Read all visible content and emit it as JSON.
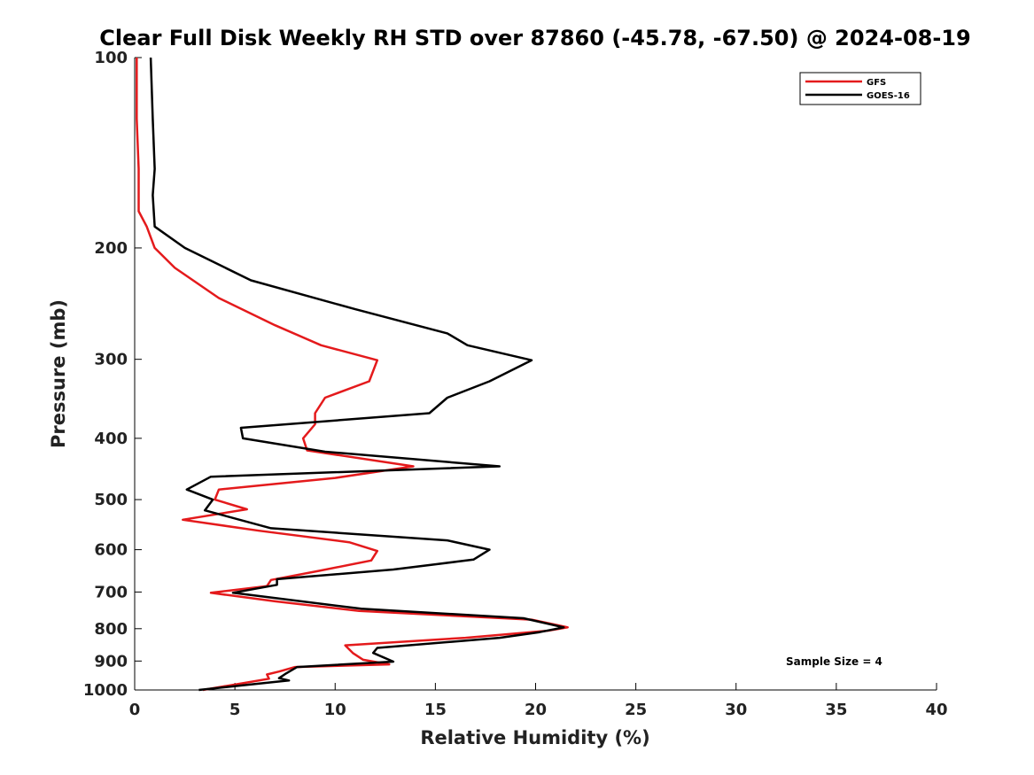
{
  "chart_data": {
    "type": "line",
    "title": "Clear Full Disk Weekly RH STD over 87860 (-45.78, -67.50) @ 2024-08-19",
    "xlabel": "Relative Humidity (%)",
    "ylabel": "Pressure (mb)",
    "xlim": [
      0,
      40
    ],
    "ylim": [
      100,
      1000
    ],
    "y_scale": "log",
    "y_reversed": true,
    "grid": false,
    "legend_position": "top-right",
    "x_ticks": [
      0,
      5,
      10,
      15,
      20,
      25,
      30,
      35,
      40
    ],
    "x_tick_labels": [
      "0",
      "5",
      "10",
      "15",
      "20",
      "25",
      "30",
      "35",
      "40"
    ],
    "y_ticks": [
      100,
      200,
      300,
      400,
      500,
      600,
      700,
      800,
      900,
      1000
    ],
    "y_tick_labels": [
      "100",
      "200",
      "300",
      "400",
      "500",
      "600",
      "700",
      "800",
      "900",
      "1000"
    ],
    "annotation": "Sample Size = 4",
    "series": [
      {
        "name": "GFS",
        "color": "#e41a1c",
        "points": [
          [
            0.1,
            100
          ],
          [
            0.1,
            125
          ],
          [
            0.2,
            150
          ],
          [
            0.2,
            175
          ],
          [
            0.6,
            185
          ],
          [
            1.0,
            200
          ],
          [
            2.0,
            215
          ],
          [
            4.2,
            240
          ],
          [
            7.0,
            265
          ],
          [
            9.3,
            285
          ],
          [
            12.1,
            301
          ],
          [
            11.7,
            325
          ],
          [
            9.5,
            345
          ],
          [
            9.0,
            365
          ],
          [
            9.0,
            380
          ],
          [
            8.4,
            400
          ],
          [
            8.6,
            418
          ],
          [
            13.9,
            443
          ],
          [
            10.0,
            462
          ],
          [
            4.2,
            482
          ],
          [
            4.0,
            500
          ],
          [
            5.6,
            518
          ],
          [
            2.4,
            538
          ],
          [
            6.2,
            560
          ],
          [
            10.7,
            584
          ],
          [
            12.1,
            603
          ],
          [
            11.8,
            624
          ],
          [
            9.2,
            648
          ],
          [
            6.8,
            670
          ],
          [
            6.6,
            685
          ],
          [
            3.8,
            702
          ],
          [
            7.0,
            724
          ],
          [
            11.2,
            750
          ],
          [
            19.8,
            774
          ],
          [
            21.6,
            796
          ],
          [
            20.6,
            806
          ],
          [
            16.5,
            827
          ],
          [
            10.5,
            850
          ],
          [
            10.9,
            875
          ],
          [
            11.4,
            896
          ],
          [
            12.7,
            911
          ],
          [
            8.0,
            920
          ],
          [
            7.2,
            935
          ],
          [
            6.6,
            945
          ],
          [
            6.7,
            960
          ],
          [
            5.2,
            978
          ],
          [
            3.4,
            1000
          ]
        ]
      },
      {
        "name": "GOES-16",
        "color": "#000000",
        "points": [
          [
            0.8,
            100
          ],
          [
            0.9,
            125
          ],
          [
            1.0,
            150
          ],
          [
            0.9,
            165
          ],
          [
            1.0,
            185
          ],
          [
            2.5,
            200
          ],
          [
            5.8,
            225
          ],
          [
            11.0,
            250
          ],
          [
            15.6,
            273
          ],
          [
            16.6,
            285
          ],
          [
            19.8,
            301
          ],
          [
            17.7,
            325
          ],
          [
            15.6,
            345
          ],
          [
            14.7,
            365
          ],
          [
            5.3,
            385
          ],
          [
            5.4,
            400
          ],
          [
            9.5,
            420
          ],
          [
            18.2,
            443
          ],
          [
            3.8,
            460
          ],
          [
            2.6,
            482
          ],
          [
            3.9,
            500
          ],
          [
            3.5,
            520
          ],
          [
            6.8,
            555
          ],
          [
            15.6,
            580
          ],
          [
            17.7,
            600
          ],
          [
            16.9,
            622
          ],
          [
            12.9,
            645
          ],
          [
            7.1,
            668
          ],
          [
            7.1,
            682
          ],
          [
            4.9,
            702
          ],
          [
            11.3,
            744
          ],
          [
            19.4,
            770
          ],
          [
            21.4,
            796
          ],
          [
            20.2,
            810
          ],
          [
            18.2,
            827
          ],
          [
            12.1,
            858
          ],
          [
            11.9,
            874
          ],
          [
            12.9,
            902
          ],
          [
            8.1,
            920
          ],
          [
            7.5,
            944
          ],
          [
            7.2,
            958
          ],
          [
            7.7,
            966
          ],
          [
            5.8,
            980
          ],
          [
            3.2,
            1000
          ]
        ]
      }
    ]
  }
}
